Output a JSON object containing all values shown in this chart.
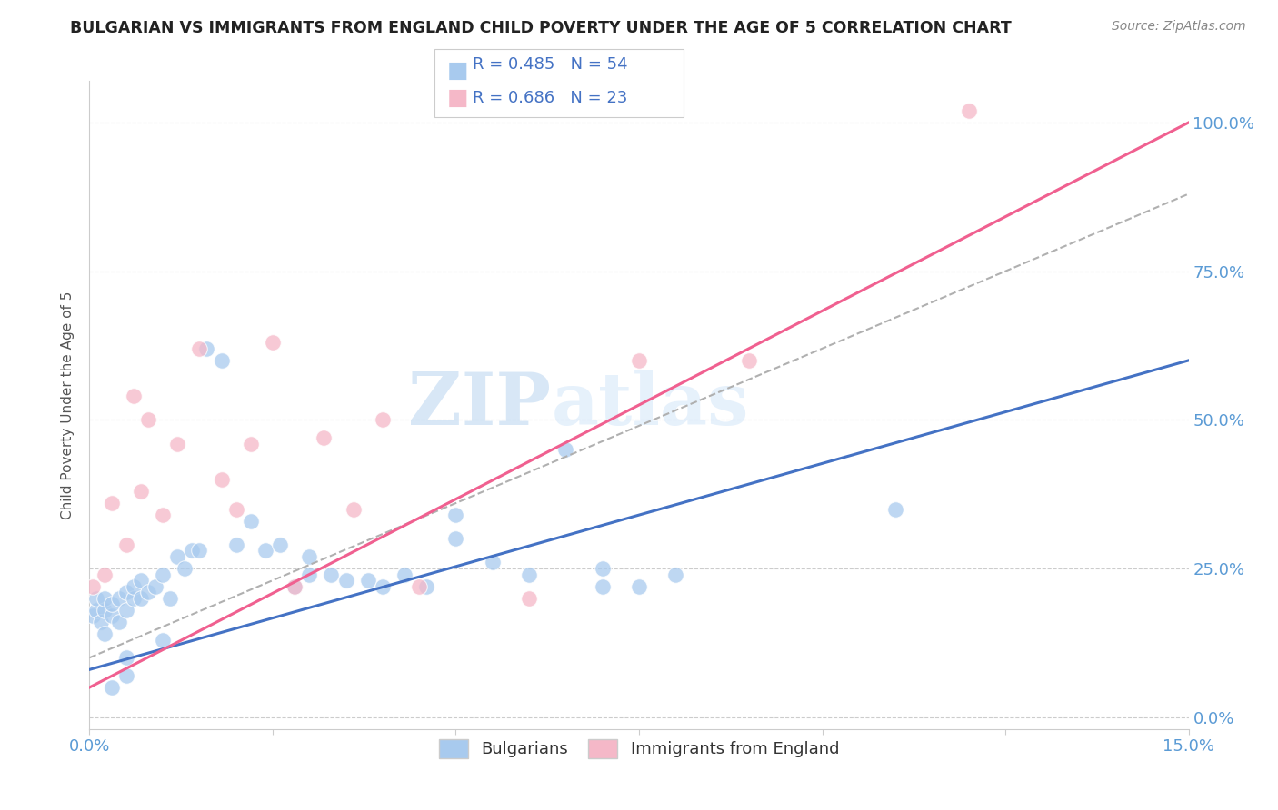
{
  "title": "BULGARIAN VS IMMIGRANTS FROM ENGLAND CHILD POVERTY UNDER THE AGE OF 5 CORRELATION CHART",
  "source": "Source: ZipAtlas.com",
  "ylabel": "Child Poverty Under the Age of 5",
  "yticks": [
    "0.0%",
    "25.0%",
    "50.0%",
    "75.0%",
    "100.0%"
  ],
  "ytick_vals": [
    0.0,
    0.25,
    0.5,
    0.75,
    1.0
  ],
  "legend1_r": "R = 0.485",
  "legend1_n": "N = 54",
  "legend2_r": "R = 0.686",
  "legend2_n": "N = 23",
  "legend_label1": "Bulgarians",
  "legend_label2": "Immigrants from England",
  "color_blue": "#a8caee",
  "color_pink": "#f5b8c8",
  "color_blue_line": "#4472c4",
  "color_pink_line": "#f06090",
  "color_dashed": "#b0b0b0",
  "watermark_zip": "ZIP",
  "watermark_atlas": "atlas",
  "blue_scatter_x": [
    0.0005,
    0.001,
    0.001,
    0.0015,
    0.002,
    0.002,
    0.003,
    0.003,
    0.004,
    0.004,
    0.005,
    0.005,
    0.006,
    0.006,
    0.007,
    0.007,
    0.008,
    0.009,
    0.01,
    0.011,
    0.012,
    0.013,
    0.014,
    0.015,
    0.016,
    0.018,
    0.02,
    0.022,
    0.024,
    0.026,
    0.028,
    0.03,
    0.033,
    0.035,
    0.038,
    0.04,
    0.043,
    0.046,
    0.05,
    0.055,
    0.06,
    0.065,
    0.07,
    0.075,
    0.08,
    0.07,
    0.05,
    0.03,
    0.01,
    0.005,
    0.003,
    0.11,
    0.005,
    0.002
  ],
  "blue_scatter_y": [
    0.17,
    0.18,
    0.2,
    0.16,
    0.18,
    0.2,
    0.17,
    0.19,
    0.16,
    0.2,
    0.18,
    0.21,
    0.2,
    0.22,
    0.2,
    0.23,
    0.21,
    0.22,
    0.24,
    0.2,
    0.27,
    0.25,
    0.28,
    0.28,
    0.62,
    0.6,
    0.29,
    0.33,
    0.28,
    0.29,
    0.22,
    0.24,
    0.24,
    0.23,
    0.23,
    0.22,
    0.24,
    0.22,
    0.3,
    0.26,
    0.24,
    0.45,
    0.22,
    0.22,
    0.24,
    0.25,
    0.34,
    0.27,
    0.13,
    0.07,
    0.05,
    0.35,
    0.1,
    0.14
  ],
  "pink_scatter_x": [
    0.0005,
    0.002,
    0.003,
    0.005,
    0.006,
    0.007,
    0.008,
    0.01,
    0.012,
    0.015,
    0.018,
    0.02,
    0.022,
    0.025,
    0.028,
    0.032,
    0.036,
    0.04,
    0.045,
    0.06,
    0.075,
    0.12,
    0.09
  ],
  "pink_scatter_y": [
    0.22,
    0.24,
    0.36,
    0.29,
    0.54,
    0.38,
    0.5,
    0.34,
    0.46,
    0.62,
    0.4,
    0.35,
    0.46,
    0.63,
    0.22,
    0.47,
    0.35,
    0.5,
    0.22,
    0.2,
    0.6,
    1.02,
    0.6
  ],
  "xlim": [
    0.0,
    0.15
  ],
  "ylim": [
    -0.02,
    1.07
  ],
  "blue_line": [
    0.0,
    0.15,
    0.08,
    0.6
  ],
  "pink_line": [
    0.0,
    0.15,
    0.05,
    1.0
  ],
  "dashed_line": [
    0.0,
    0.15,
    0.1,
    0.88
  ]
}
